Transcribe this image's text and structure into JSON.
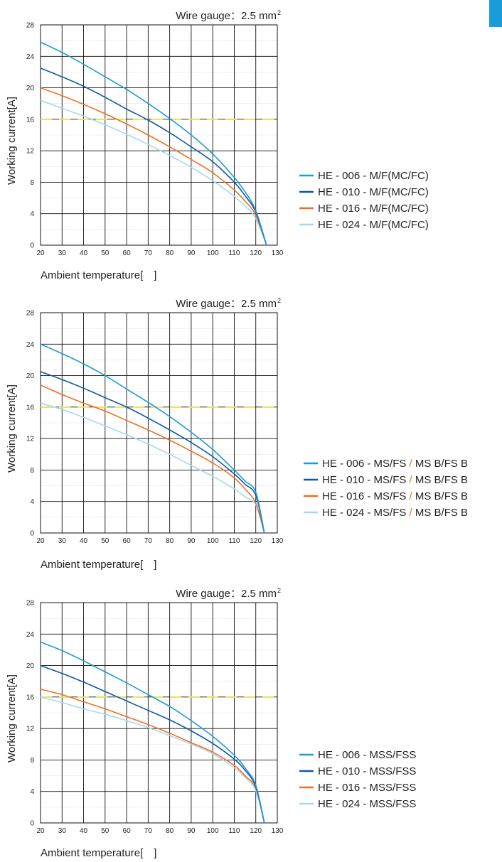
{
  "accent_color": "#1a9cd8",
  "chart_data": [
    {
      "type": "line",
      "title": "Wire gauge：2.5 mm",
      "title_superscript": "2",
      "xlabel": "Ambient temperature[　]",
      "ylabel": "Working current[A]",
      "xlim": [
        20,
        130
      ],
      "ylim": [
        0,
        28
      ],
      "xticks": [
        "20",
        "30",
        "40",
        "50",
        "60",
        "70",
        "80",
        "90",
        "100",
        "110",
        "120",
        "130"
      ],
      "yticks": [
        "0",
        "4",
        "8",
        "12",
        "16",
        "20",
        "24",
        "28"
      ],
      "grid": true,
      "legend_position": "right",
      "reference_line": {
        "y": 16,
        "color": "#e8e060"
      },
      "series": [
        {
          "name_main": "HE - 006 - M/F(MC/FC)",
          "name_sep": "",
          "name_tail": "",
          "color": "#1a9cd8",
          "x": [
            20,
            30,
            40,
            50,
            60,
            70,
            80,
            90,
            100,
            110,
            115,
            120,
            125
          ],
          "y": [
            25.8,
            24.5,
            23.0,
            21.4,
            19.8,
            18.0,
            16.1,
            14.0,
            11.6,
            8.6,
            6.8,
            4.4,
            0
          ]
        },
        {
          "name_main": "HE - 010 - M/F(MC/FC)",
          "name_sep": "",
          "name_tail": "",
          "color": "#0c5aa6",
          "x": [
            20,
            30,
            40,
            50,
            60,
            70,
            80,
            90,
            100,
            110,
            115,
            120,
            125
          ],
          "y": [
            22.5,
            21.4,
            20.2,
            18.8,
            17.3,
            15.9,
            14.3,
            12.5,
            10.6,
            8.0,
            6.3,
            4.2,
            0
          ]
        },
        {
          "name_main": "HE - 016 - M/F(MC/FC)",
          "name_sep": "",
          "name_tail": "",
          "color": "#f07020",
          "x": [
            20,
            30,
            40,
            50,
            60,
            70,
            80,
            90,
            100,
            110,
            115,
            120,
            125
          ],
          "y": [
            20.0,
            19.0,
            17.9,
            16.7,
            15.4,
            14.0,
            12.5,
            10.9,
            9.2,
            7.0,
            5.6,
            3.8,
            0
          ]
        },
        {
          "name_main": "HE - 024 - M/F(MC/FC)",
          "name_sep": "",
          "name_tail": "",
          "color": "#a6d8f0",
          "x": [
            20,
            30,
            40,
            50,
            60,
            70,
            80,
            90,
            100,
            110,
            115,
            120,
            125
          ],
          "y": [
            18.4,
            17.4,
            16.4,
            15.3,
            14.1,
            12.8,
            11.4,
            9.9,
            8.2,
            6.2,
            5.0,
            3.4,
            0
          ]
        }
      ]
    },
    {
      "type": "line",
      "title": "Wire gauge：2.5 mm",
      "title_superscript": "2",
      "xlabel": "Ambient temperature[　]",
      "ylabel": "Working current[A]",
      "xlim": [
        20,
        130
      ],
      "ylim": [
        0,
        28
      ],
      "xticks": [
        "20",
        "30",
        "40",
        "50",
        "60",
        "70",
        "80",
        "90",
        "100",
        "110",
        "120",
        "130"
      ],
      "yticks": [
        "0",
        "4",
        "8",
        "12",
        "16",
        "20",
        "24",
        "28"
      ],
      "grid": true,
      "legend_position": "right",
      "reference_line": {
        "y": 16,
        "color": "#e8e060"
      },
      "series": [
        {
          "name_main": "HE - 006 - MS/FS",
          "name_sep": " / ",
          "name_tail": "MS B/FS B",
          "color": "#1a9cd8",
          "x": [
            20,
            30,
            40,
            50,
            60,
            70,
            80,
            90,
            100,
            110,
            115,
            120,
            124
          ],
          "y": [
            24.0,
            22.8,
            21.5,
            20.0,
            18.3,
            16.6,
            14.8,
            12.8,
            10.6,
            8.0,
            6.6,
            5.2,
            0
          ]
        },
        {
          "name_main": "HE - 010 - MS/FS",
          "name_sep": " / ",
          "name_tail": "MS B/FS B",
          "color": "#0c5aa6",
          "x": [
            20,
            30,
            40,
            50,
            60,
            70,
            80,
            90,
            100,
            110,
            115,
            120,
            124
          ],
          "y": [
            20.5,
            19.5,
            18.4,
            17.2,
            16.0,
            14.6,
            13.1,
            11.5,
            9.7,
            7.5,
            6.2,
            4.8,
            0
          ]
        },
        {
          "name_main": "HE - 016 - MS/FS",
          "name_sep": " / ",
          "name_tail": "MS B/FS B",
          "color": "#f07020",
          "x": [
            20,
            30,
            40,
            50,
            60,
            70,
            80,
            90,
            100,
            110,
            115,
            120,
            124
          ],
          "y": [
            18.8,
            17.6,
            16.5,
            15.5,
            14.3,
            13.1,
            11.8,
            10.4,
            8.9,
            7.0,
            5.6,
            3.8,
            0
          ]
        },
        {
          "name_main": "HE - 024 - MS/FS",
          "name_sep": " / ",
          "name_tail": "MS B/FS B",
          "color": "#a6d8f0",
          "x": [
            20,
            30,
            40,
            50,
            60,
            70,
            80,
            90,
            100,
            110,
            115,
            120,
            124
          ],
          "y": [
            16.5,
            15.7,
            14.7,
            13.6,
            12.5,
            11.3,
            10.0,
            8.6,
            7.2,
            5.6,
            4.6,
            3.6,
            0
          ]
        }
      ]
    },
    {
      "type": "line",
      "title": "Wire gauge：2.5 mm",
      "title_superscript": "2",
      "xlabel": "Ambient temperature[　]",
      "ylabel": "Working current[A]",
      "xlim": [
        20,
        130
      ],
      "ylim": [
        0,
        28
      ],
      "xticks": [
        "20",
        "30",
        "40",
        "50",
        "60",
        "70",
        "80",
        "90",
        "100",
        "110",
        "120",
        "130"
      ],
      "yticks": [
        "0",
        "4",
        "8",
        "12",
        "16",
        "20",
        "24",
        "28"
      ],
      "grid": true,
      "legend_position": "right",
      "reference_line": {
        "y": 16,
        "color": "#e8e060"
      },
      "series": [
        {
          "name_main": "HE - 006 - MSS/FSS",
          "name_sep": "",
          "name_tail": "",
          "color": "#1a9cd8",
          "x": [
            20,
            30,
            40,
            50,
            60,
            70,
            80,
            90,
            100,
            110,
            115,
            120,
            124
          ],
          "y": [
            23.0,
            21.9,
            20.6,
            19.2,
            17.8,
            16.3,
            14.8,
            13.0,
            11.0,
            8.6,
            7.0,
            4.8,
            0
          ]
        },
        {
          "name_main": "HE - 010 - MSS/FSS",
          "name_sep": "",
          "name_tail": "",
          "color": "#0c5aa6",
          "x": [
            20,
            30,
            40,
            50,
            60,
            70,
            80,
            90,
            100,
            110,
            115,
            120,
            124
          ],
          "y": [
            20.0,
            19.0,
            17.9,
            16.7,
            15.5,
            14.3,
            13.1,
            11.7,
            10.1,
            8.1,
            6.7,
            4.6,
            0
          ]
        },
        {
          "name_main": "HE - 016 - MSS/FSS",
          "name_sep": "",
          "name_tail": "",
          "color": "#f07020",
          "x": [
            20,
            30,
            40,
            50,
            60,
            70,
            80,
            90,
            100,
            110,
            115,
            120,
            124
          ],
          "y": [
            17.0,
            16.3,
            15.4,
            14.5,
            13.5,
            12.5,
            11.4,
            10.2,
            9.0,
            7.3,
            6.0,
            4.4,
            0
          ]
        },
        {
          "name_main": "HE - 024 - MSS/FSS",
          "name_sep": "",
          "name_tail": "",
          "color": "#a6d8f0",
          "x": [
            20,
            30,
            40,
            50,
            60,
            70,
            80,
            90,
            100,
            110,
            115,
            120,
            124
          ],
          "y": [
            16.0,
            15.3,
            14.5,
            13.8,
            13.0,
            12.1,
            11.1,
            10.0,
            8.8,
            7.0,
            5.8,
            4.1,
            0
          ]
        }
      ]
    }
  ]
}
